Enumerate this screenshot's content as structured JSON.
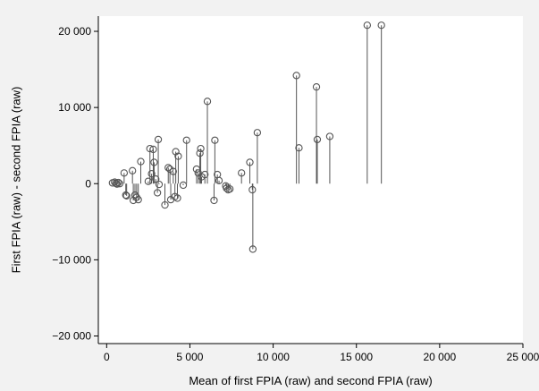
{
  "chart_data": {
    "type": "scatter",
    "style": "spike",
    "title": "",
    "xlabel": "Mean of first FPIA (raw) and second FPIA (raw)",
    "ylabel": "First FPIA (raw) - second FPIA (raw)",
    "xlim": [
      -500,
      25000
    ],
    "ylim": [
      -21000,
      22000
    ],
    "xticks": [
      0,
      5000,
      10000,
      15000,
      20000,
      25000
    ],
    "xtick_labels": [
      "0",
      "5 000",
      "10 000",
      "15 000",
      "20 000",
      "25 000"
    ],
    "yticks": [
      -20000,
      -10000,
      0,
      10000,
      20000
    ],
    "ytick_labels": [
      "−20 000",
      "−10 000",
      "0",
      "10 000",
      "20 000"
    ],
    "grid": false,
    "marker": "hollow-circle",
    "colors": {
      "outer_background": "#f2f2f2",
      "plot_background": "#ffffff",
      "marker": "#555555",
      "spike": "#555555",
      "axis": "#000000"
    },
    "points": [
      [
        350,
        100
      ],
      [
        480,
        200
      ],
      [
        560,
        50
      ],
      [
        620,
        -50
      ],
      [
        700,
        150
      ],
      [
        780,
        0
      ],
      [
        1050,
        1400
      ],
      [
        1150,
        -1500
      ],
      [
        1200,
        -1600
      ],
      [
        1550,
        1700
      ],
      [
        1600,
        -2200
      ],
      [
        1700,
        -1500
      ],
      [
        1800,
        -1800
      ],
      [
        1900,
        -2100
      ],
      [
        2050,
        2900
      ],
      [
        2500,
        300
      ],
      [
        2600,
        4600
      ],
      [
        2700,
        1300
      ],
      [
        2800,
        4500
      ],
      [
        2850,
        2800
      ],
      [
        2950,
        600
      ],
      [
        3050,
        -1200
      ],
      [
        3100,
        5800
      ],
      [
        3150,
        -100
      ],
      [
        3500,
        -2800
      ],
      [
        3700,
        2100
      ],
      [
        3800,
        1900
      ],
      [
        3850,
        -2100
      ],
      [
        4000,
        1600
      ],
      [
        4100,
        -1700
      ],
      [
        4150,
        4200
      ],
      [
        4250,
        -1900
      ],
      [
        4300,
        3600
      ],
      [
        4600,
        -200
      ],
      [
        4800,
        5700
      ],
      [
        5400,
        1900
      ],
      [
        5500,
        1400
      ],
      [
        5600,
        4000
      ],
      [
        5650,
        4600
      ],
      [
        5700,
        900
      ],
      [
        5900,
        1200
      ],
      [
        6050,
        10800
      ],
      [
        6450,
        -2200
      ],
      [
        6500,
        5700
      ],
      [
        6650,
        1200
      ],
      [
        6750,
        400
      ],
      [
        7150,
        -300
      ],
      [
        7200,
        -600
      ],
      [
        7300,
        -800
      ],
      [
        7400,
        -700
      ],
      [
        8100,
        1400
      ],
      [
        8600,
        2800
      ],
      [
        8750,
        -800
      ],
      [
        8780,
        -8600
      ],
      [
        9050,
        6700
      ],
      [
        11400,
        14200
      ],
      [
        11550,
        4700
      ],
      [
        12600,
        12700
      ],
      [
        12650,
        5800
      ],
      [
        13400,
        6200
      ],
      [
        15650,
        20800
      ],
      [
        16500,
        20800
      ]
    ]
  }
}
